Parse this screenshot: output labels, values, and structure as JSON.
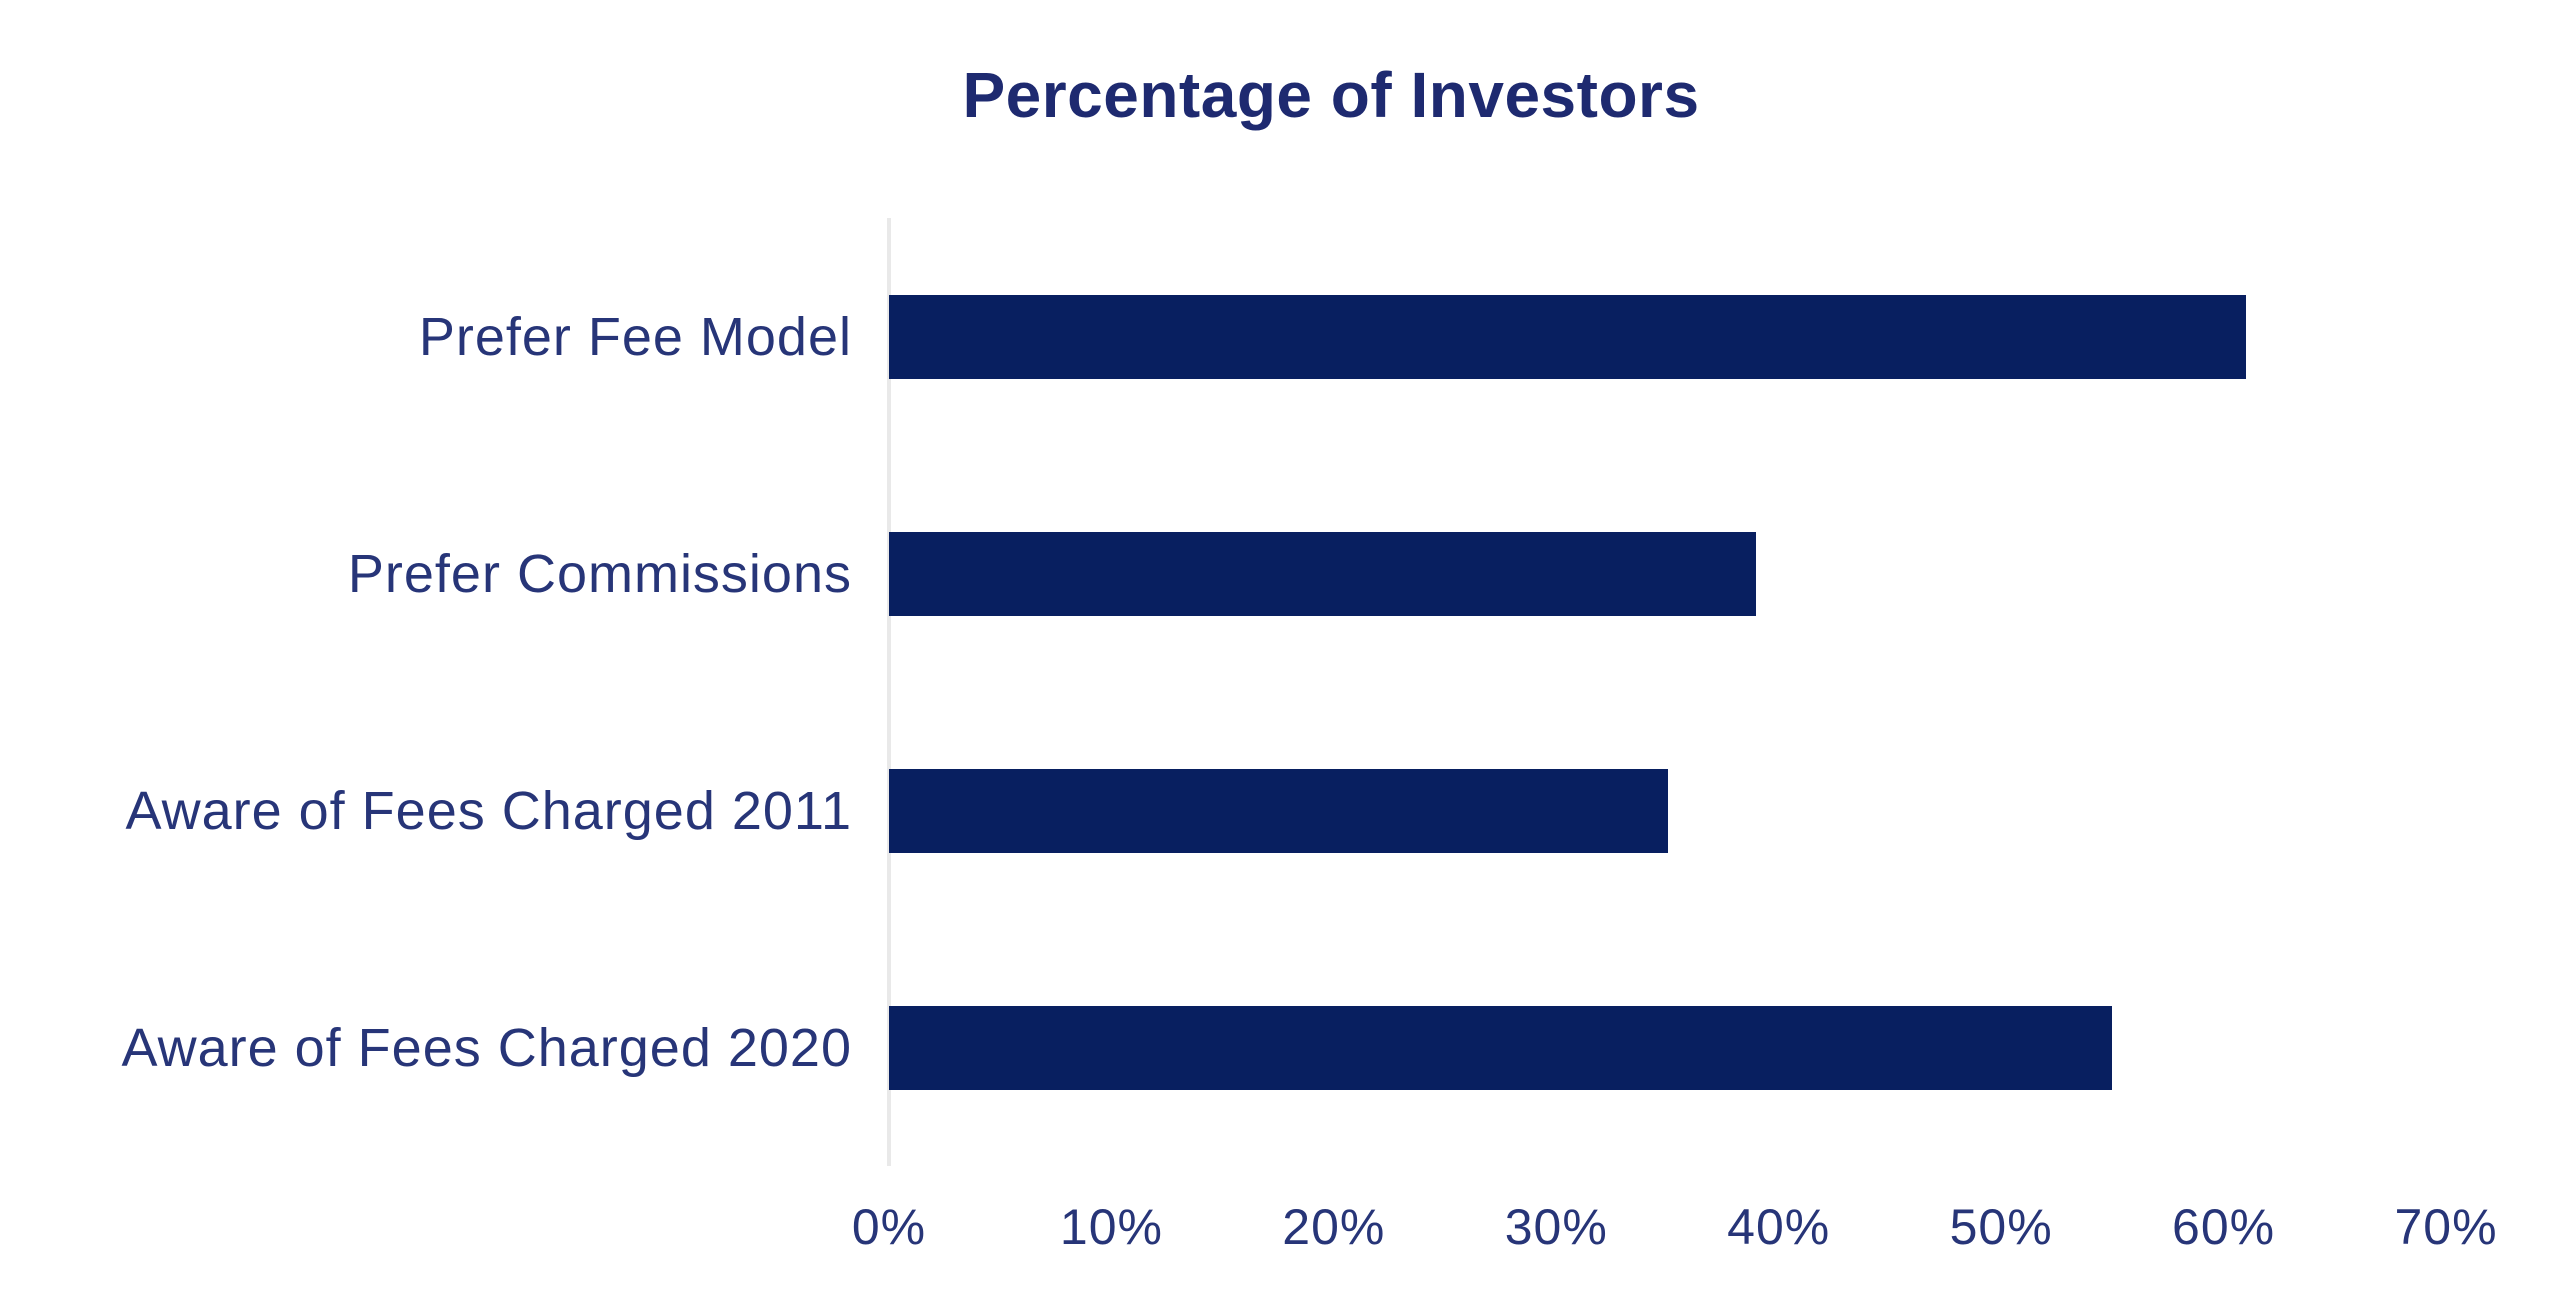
{
  "title": "Percentage of Investors",
  "colors": {
    "background": "#ffffff",
    "bar": "#081f60",
    "title": "#1e2a70",
    "label": "#273578",
    "axis_line": "#e9e9e9"
  },
  "chart_data": {
    "type": "bar",
    "orientation": "horizontal",
    "title": "Percentage of Investors",
    "categories": [
      "Prefer Fee Model",
      "Prefer Commissions",
      "Aware of Fees Charged 2011",
      "Aware of Fees Charged 2020"
    ],
    "values": [
      61,
      39,
      35,
      55
    ],
    "value_unit": "%",
    "xlabel": "",
    "ylabel": "",
    "xlim": [
      0,
      70
    ],
    "xticks": [
      0,
      10,
      20,
      30,
      40,
      50,
      60,
      70
    ],
    "xtick_labels": [
      "0%",
      "10%",
      "20%",
      "30%",
      "40%",
      "50%",
      "60%",
      "70%"
    ],
    "grid": false,
    "legend": false
  }
}
